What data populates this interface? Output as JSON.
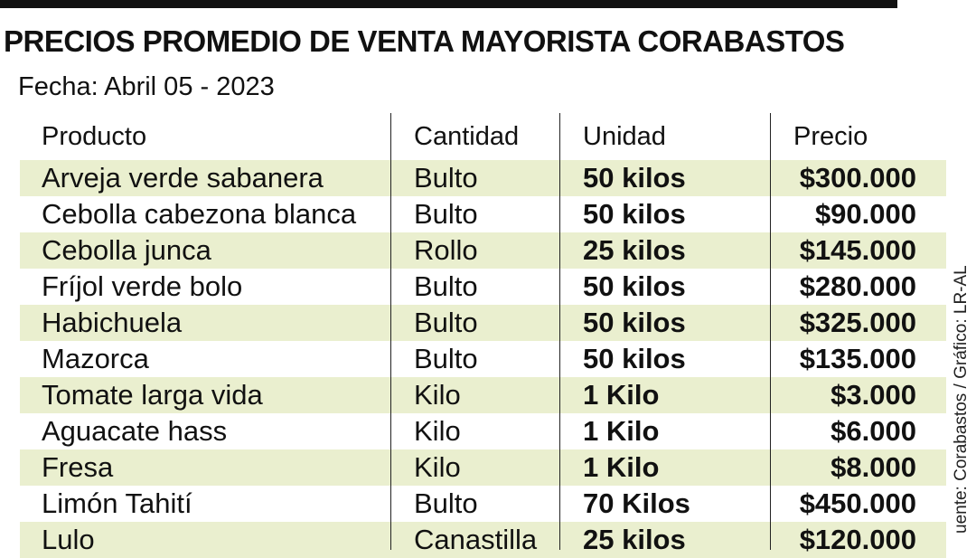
{
  "title": "PRECIOS PROMEDIO DE VENTA MAYORISTA CORABASTOS",
  "date": "Fecha: Abril 05 - 2023",
  "source": "uente: Corabastos / Gráfico: LR-AL",
  "headers": {
    "producto": "Producto",
    "cantidad": "Cantidad",
    "unidad": "Unidad",
    "precio": "Precio"
  },
  "shade_color": "#eaefcf",
  "rows": [
    {
      "producto": "Arveja verde sabanera",
      "cantidad": "Bulto",
      "unidad": "50 kilos",
      "precio": "$300.000"
    },
    {
      "producto": "Cebolla cabezona blanca",
      "cantidad": "Bulto",
      "unidad": "50 kilos",
      "precio": "$90.000"
    },
    {
      "producto": "Cebolla junca",
      "cantidad": "Rollo",
      "unidad": "25 kilos",
      "precio": "$145.000"
    },
    {
      "producto": "Fríjol verde bolo",
      "cantidad": "Bulto",
      "unidad": "50 kilos",
      "precio": "$280.000"
    },
    {
      "producto": "Habichuela",
      "cantidad": "Bulto",
      "unidad": "50 kilos",
      "precio": "$325.000"
    },
    {
      "producto": "Mazorca",
      "cantidad": "Bulto",
      "unidad": "50 kilos",
      "precio": "$135.000"
    },
    {
      "producto": "Tomate larga vida",
      "cantidad": "Kilo",
      "unidad": "1 Kilo",
      "precio": "$3.000"
    },
    {
      "producto": "Aguacate hass",
      "cantidad": "Kilo",
      "unidad": "1 Kilo",
      "precio": "$6.000"
    },
    {
      "producto": "Fresa",
      "cantidad": "Kilo",
      "unidad": "1 Kilo",
      "precio": "$8.000"
    },
    {
      "producto": "Limón Tahití",
      "cantidad": "Bulto",
      "unidad": "70 Kilos",
      "precio": "$450.000"
    },
    {
      "producto": "Lulo",
      "cantidad": "Canastilla",
      "unidad": "25 kilos",
      "precio": "$120.000"
    }
  ]
}
